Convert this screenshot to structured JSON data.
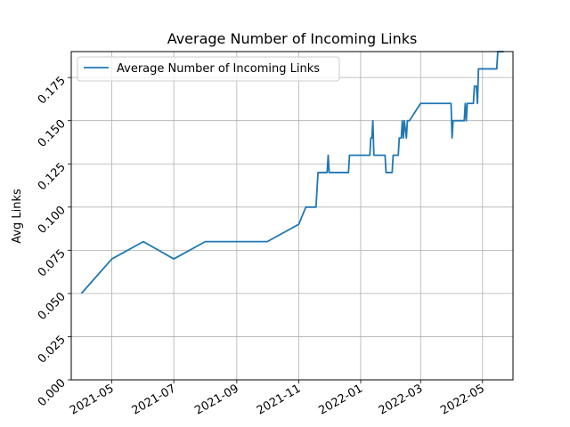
{
  "chart_data": {
    "type": "line",
    "title": "Average Number of Incoming Links",
    "xlabel": "",
    "ylabel": "Avg Links",
    "x_axis_type": "date",
    "xlim": [
      "2021-03-22",
      "2022-05-31"
    ],
    "ylim": [
      0.0,
      0.19
    ],
    "x_ticks": [
      "2021-05",
      "2021-07",
      "2021-09",
      "2021-11",
      "2022-01",
      "2022-03",
      "2022-05"
    ],
    "y_ticks": [
      "0.000",
      "0.025",
      "0.050",
      "0.075",
      "0.100",
      "0.125",
      "0.150",
      "0.175"
    ],
    "grid": true,
    "legend_position": "upper left",
    "series": [
      {
        "name": "Average Number of Incoming Links",
        "color": "#1f77b4",
        "x": [
          "2021-04-01",
          "2021-05-01",
          "2021-06-01",
          "2021-07-01",
          "2021-08-01",
          "2021-09-01",
          "2021-10-01",
          "2021-11-01",
          "2021-11-08",
          "2021-11-18",
          "2021-11-20",
          "2021-11-29",
          "2021-11-30",
          "2021-12-01",
          "2021-12-20",
          "2021-12-21",
          "2021-12-22",
          "2022-01-10",
          "2022-01-11",
          "2022-01-12",
          "2022-01-13",
          "2022-01-14",
          "2022-01-15",
          "2022-01-25",
          "2022-01-26",
          "2022-02-01",
          "2022-02-02",
          "2022-02-07",
          "2022-02-08",
          "2022-02-10",
          "2022-02-11",
          "2022-02-12",
          "2022-02-13",
          "2022-02-15",
          "2022-02-16",
          "2022-02-17",
          "2022-02-18",
          "2022-03-01",
          "2022-03-31",
          "2022-04-01",
          "2022-04-02",
          "2022-04-03",
          "2022-04-13",
          "2022-04-14",
          "2022-04-15",
          "2022-04-16",
          "2022-04-17",
          "2022-04-22",
          "2022-04-23",
          "2022-04-25",
          "2022-04-26",
          "2022-04-27",
          "2022-04-28",
          "2022-05-15",
          "2022-05-16",
          "2022-05-22"
        ],
        "y": [
          0.05,
          0.07,
          0.08,
          0.07,
          0.08,
          0.08,
          0.08,
          0.09,
          0.1,
          0.1,
          0.12,
          0.12,
          0.13,
          0.12,
          0.12,
          0.13,
          0.13,
          0.13,
          0.14,
          0.14,
          0.15,
          0.13,
          0.13,
          0.13,
          0.12,
          0.12,
          0.13,
          0.13,
          0.14,
          0.14,
          0.15,
          0.14,
          0.15,
          0.14,
          0.15,
          0.15,
          0.15,
          0.16,
          0.16,
          0.14,
          0.15,
          0.15,
          0.15,
          0.16,
          0.15,
          0.16,
          0.16,
          0.16,
          0.17,
          0.17,
          0.16,
          0.18,
          0.18,
          0.18,
          0.19,
          0.19
        ]
      }
    ]
  }
}
